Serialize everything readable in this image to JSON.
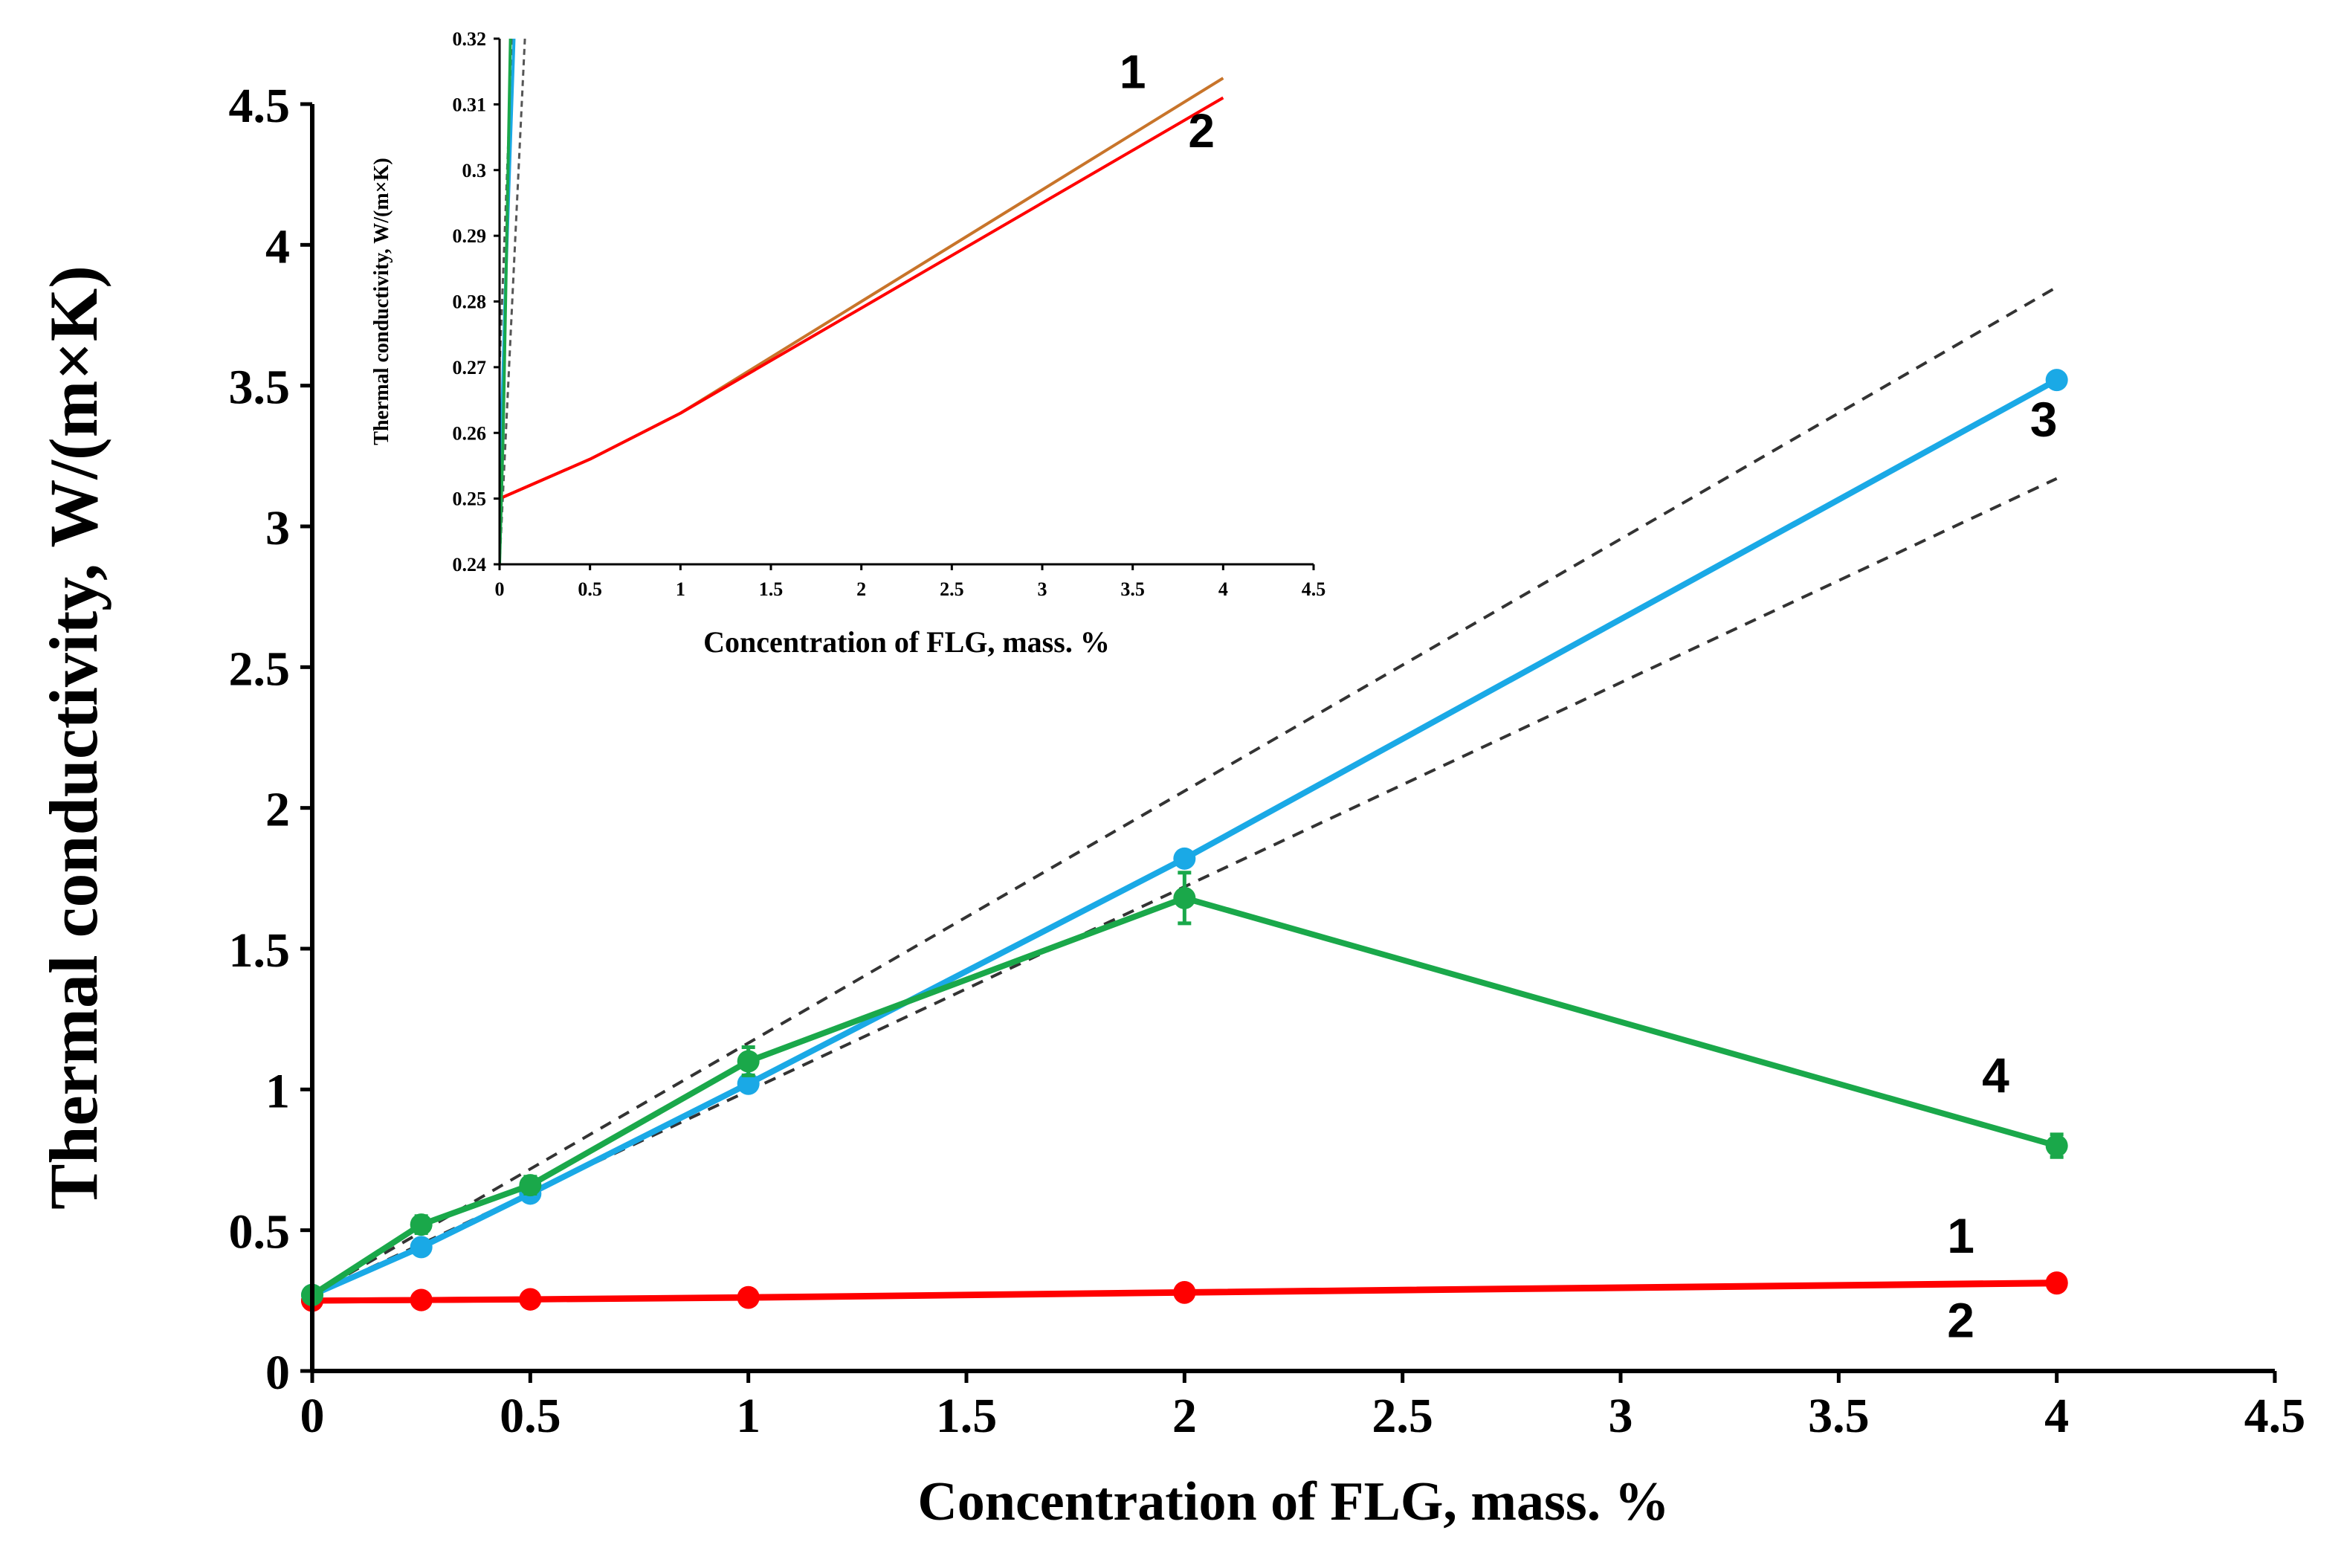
{
  "chart_data": [
    {
      "id": "main",
      "type": "line",
      "xlabel": "Concentration of FLG, mass. %",
      "ylabel": "Thermal conductivity, W/(m×K)",
      "xlim": [
        0,
        4.5
      ],
      "ylim": [
        0,
        4.5
      ],
      "x_ticks": [
        "0",
        "0.5",
        "1",
        "1.5",
        "2",
        "2.5",
        "3",
        "3.5",
        "4",
        "4.5"
      ],
      "y_ticks": [
        "0",
        "0.5",
        "1",
        "1.5",
        "2",
        "2.5",
        "3",
        "3.5",
        "4",
        "4.5"
      ],
      "grid": false,
      "series": [
        {
          "name": "1",
          "color": "#ff0000",
          "marker": "circle",
          "x": [
            0,
            0.25,
            0.5,
            1,
            2,
            4
          ],
          "y": [
            0.25,
            0.252,
            0.255,
            0.262,
            0.28,
            0.314
          ]
        },
        {
          "name": "2",
          "color": "#ff0000",
          "marker": "circle",
          "x": [
            0,
            0.25,
            0.5,
            1,
            2,
            4
          ],
          "y": [
            0.25,
            0.252,
            0.254,
            0.26,
            0.278,
            0.311
          ]
        },
        {
          "name": "3",
          "color": "#1aa9e6",
          "marker": "circle",
          "x": [
            0,
            0.25,
            0.5,
            1,
            2,
            4
          ],
          "y": [
            0.27,
            0.44,
            0.63,
            1.02,
            1.82,
            3.52
          ]
        },
        {
          "name": "4",
          "color": "#1aa84a",
          "marker": "circle",
          "x": [
            0,
            0.25,
            0.5,
            1,
            2,
            4
          ],
          "y": [
            0.27,
            0.52,
            0.66,
            1.1,
            1.68,
            0.8
          ],
          "error": [
            0,
            0.03,
            0.03,
            0.05,
            0.09,
            0.04
          ]
        }
      ],
      "reference_lines": [
        {
          "name": "upper-bound",
          "style": "dashed",
          "color": "#333333",
          "x": [
            0,
            4
          ],
          "y": [
            0.27,
            3.85
          ]
        },
        {
          "name": "lower-bound",
          "style": "dashed",
          "color": "#333333",
          "x": [
            0,
            4
          ],
          "y": [
            0.27,
            3.17
          ]
        }
      ],
      "series_labels": [
        {
          "text": "1",
          "x": 3.78,
          "y": 0.42
        },
        {
          "text": "2",
          "x": 3.78,
          "y": 0.12
        },
        {
          "text": "3",
          "x": 3.97,
          "y": 3.32
        },
        {
          "text": "4",
          "x": 3.86,
          "y": 0.99
        }
      ]
    },
    {
      "id": "inset",
      "type": "line",
      "xlabel": "Concentration of FLG, mass. %",
      "ylabel": "Thermal conductivity, W/(m×K)",
      "xlim": [
        0,
        4.5
      ],
      "ylim": [
        0.24,
        0.32
      ],
      "x_ticks": [
        "0",
        "0.5",
        "1",
        "1.5",
        "2",
        "2.5",
        "3",
        "3.5",
        "4",
        "4.5"
      ],
      "y_ticks": [
        "0.24",
        "0.25",
        "0.26",
        "0.27",
        "0.28",
        "0.29",
        "0.3",
        "0.31",
        "0.32"
      ],
      "grid": false,
      "series": [
        {
          "name": "1",
          "color": "#c8742a",
          "x": [
            0,
            0.25,
            0.5,
            1,
            2,
            4
          ],
          "y": [
            0.25,
            0.253,
            0.256,
            0.263,
            0.28,
            0.314
          ]
        },
        {
          "name": "2",
          "color": "#ff0000",
          "x": [
            0,
            0.25,
            0.5,
            1,
            2,
            4
          ],
          "y": [
            0.25,
            0.253,
            0.256,
            0.263,
            0.279,
            0.311
          ]
        },
        {
          "name": "3",
          "color": "#1aa9e6",
          "x": [
            0,
            0.03,
            0.08
          ],
          "y": [
            0.25,
            0.28,
            0.32
          ]
        },
        {
          "name": "4",
          "color": "#1aa84a",
          "x": [
            0,
            0.02,
            0.06
          ],
          "y": [
            0.24,
            0.26,
            0.32
          ]
        }
      ],
      "reference_lines": [
        {
          "name": "upper-bound",
          "style": "dashed",
          "color": "#555555",
          "x": [
            0,
            0.07
          ],
          "y": [
            0.27,
            0.32
          ]
        },
        {
          "name": "lower-bound",
          "style": "dashed",
          "color": "#555555",
          "x": [
            0,
            0.14
          ],
          "y": [
            0.24,
            0.32
          ]
        }
      ],
      "series_labels": [
        {
          "text": "1",
          "x": 3.5,
          "y": 0.3125
        },
        {
          "text": "2",
          "x": 3.88,
          "y": 0.3035
        }
      ]
    }
  ]
}
